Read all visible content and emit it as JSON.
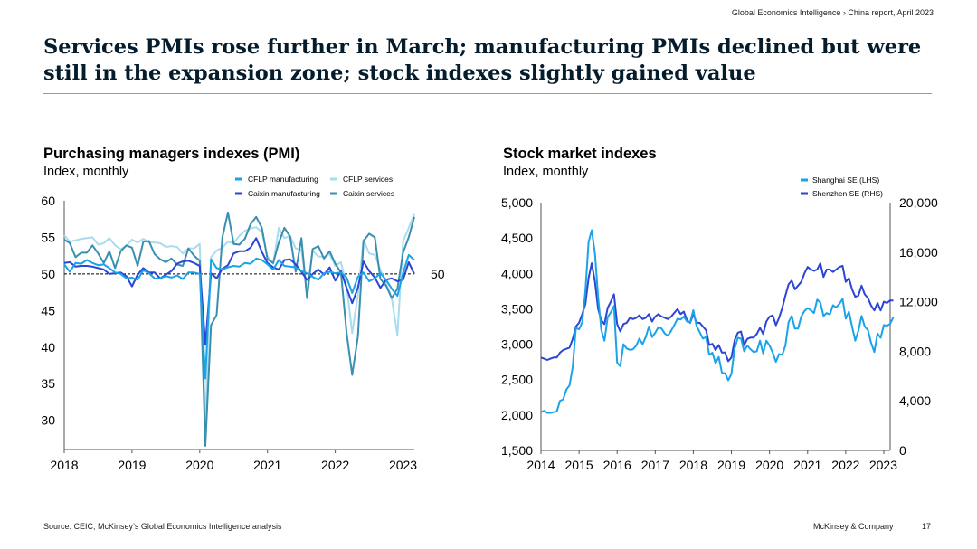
{
  "header": {
    "breadcrumb": "Global Economics Intelligence › China report, April 2023",
    "title": "Services PMIs rose further in March; manufacturing PMIs declined but were still in the expansion zone; stock indexes slightly gained value"
  },
  "colors": {
    "cflp_manufacturing": "#1aa3e8",
    "cflp_services": "#a8dcee",
    "caixin_manufacturing": "#2b45d4",
    "caixin_services": "#3a8fb0",
    "shanghai": "#1aa3e8",
    "shenzhen": "#2b45d4",
    "title": "#051c2c"
  },
  "footer": {
    "source": "Source: CEIC; McKinsey’s Global Economics Intelligence analysis",
    "company": "McKinsey & Company",
    "page": "17"
  },
  "chart_data": [
    {
      "type": "line",
      "title": "Purchasing managers indexes (PMI)",
      "subtitle": "Index, monthly",
      "xlabel": "",
      "ylabel": "",
      "x_start": "2018-01",
      "x_ticks": [
        "2018",
        "2019",
        "2020",
        "2021",
        "2022",
        "2023"
      ],
      "xlim": [
        "2018-01",
        "2023-03"
      ],
      "y_ticks": [
        60,
        55,
        50,
        45,
        40,
        35,
        30
      ],
      "ylim": [
        26,
        60
      ],
      "reference_line": {
        "y": 50,
        "label": "50",
        "style": "dashed"
      },
      "legend_position": "top",
      "grid": false,
      "series": [
        {
          "name": "CFLP manufacturing",
          "color": "#1aa3e8",
          "values": [
            51.3,
            50.3,
            51.5,
            51.4,
            51.9,
            51.5,
            51.2,
            51.3,
            50.8,
            50.2,
            50.0,
            49.4,
            49.5,
            49.2,
            50.5,
            50.1,
            49.4,
            49.4,
            49.7,
            49.5,
            49.8,
            49.3,
            50.2,
            50.2,
            50.0,
            35.7,
            52.0,
            50.8,
            50.6,
            50.9,
            51.1,
            51.0,
            51.5,
            51.4,
            52.1,
            51.9,
            51.3,
            50.6,
            51.9,
            51.1,
            51.0,
            50.9,
            50.4,
            50.1,
            49.6,
            49.2,
            50.1,
            50.3,
            50.1,
            50.2,
            49.5,
            47.4,
            49.6,
            50.2,
            49.0,
            49.4,
            50.1,
            49.2,
            48.0,
            47.0,
            50.1,
            52.6,
            51.9
          ]
        },
        {
          "name": "CFLP services",
          "color": "#a8dcee",
          "values": [
            55.3,
            54.4,
            54.6,
            54.8,
            54.9,
            55.0,
            54.0,
            54.2,
            54.9,
            53.9,
            53.4,
            53.8,
            54.7,
            54.3,
            54.8,
            54.3,
            54.3,
            54.2,
            53.7,
            53.8,
            53.7,
            52.8,
            53.5,
            53.5,
            54.1,
            29.6,
            52.3,
            53.2,
            53.6,
            54.4,
            54.2,
            55.2,
            55.9,
            56.2,
            56.4,
            55.7,
            52.4,
            51.4,
            56.3,
            54.9,
            55.2,
            53.5,
            53.3,
            47.5,
            53.2,
            52.4,
            52.3,
            52.7,
            51.1,
            51.6,
            48.4,
            41.9,
            47.1,
            54.7,
            52.8,
            52.6,
            50.6,
            48.7,
            46.7,
            41.6,
            54.4,
            56.3,
            58.2
          ]
        },
        {
          "name": "Caixin manufacturing",
          "color": "#2b45d4",
          "values": [
            51.5,
            51.6,
            51.0,
            51.1,
            51.1,
            51.0,
            50.8,
            50.6,
            50.0,
            50.1,
            50.2,
            49.7,
            48.3,
            49.9,
            50.8,
            50.2,
            50.2,
            49.4,
            49.9,
            50.4,
            51.4,
            51.7,
            51.8,
            51.5,
            51.1,
            40.3,
            50.1,
            49.4,
            50.7,
            51.2,
            52.8,
            53.1,
            53.1,
            53.6,
            54.9,
            53.0,
            51.5,
            50.9,
            50.6,
            51.9,
            52.0,
            51.3,
            50.3,
            49.2,
            50.0,
            50.6,
            49.9,
            50.9,
            49.1,
            50.4,
            48.1,
            46.0,
            48.1,
            51.7,
            50.4,
            49.5,
            48.1,
            49.2,
            49.4,
            49.0,
            49.2,
            51.6,
            50.0
          ]
        },
        {
          "name": "Caixin services",
          "color": "#3a8fb0",
          "values": [
            54.7,
            54.2,
            52.3,
            52.9,
            52.9,
            53.9,
            52.8,
            51.5,
            53.1,
            50.8,
            53.1,
            53.9,
            53.6,
            51.1,
            54.4,
            54.5,
            52.7,
            52.0,
            51.6,
            52.1,
            51.3,
            51.1,
            53.5,
            52.5,
            51.8,
            26.5,
            43.0,
            44.4,
            55.0,
            58.4,
            54.1,
            54.0,
            54.8,
            56.8,
            57.8,
            56.3,
            52.0,
            51.5,
            54.3,
            56.3,
            55.1,
            50.3,
            54.9,
            46.7,
            53.4,
            53.8,
            52.1,
            53.1,
            51.4,
            50.2,
            42.0,
            36.2,
            41.4,
            54.5,
            55.5,
            55.0,
            49.3,
            48.4,
            46.7,
            48.0,
            52.9,
            55.0,
            57.8
          ]
        }
      ]
    },
    {
      "type": "line",
      "title": "Stock market indexes",
      "subtitle": "Index, monthly",
      "xlabel": "",
      "ylabel": "",
      "x_start": "2014-01",
      "x_ticks": [
        "2014",
        "2015",
        "2016",
        "2017",
        "2018",
        "2019",
        "2020",
        "2021",
        "2022",
        "2023"
      ],
      "xlim": [
        "2014-01",
        "2023-03"
      ],
      "y_left": {
        "ticks": [
          5000,
          4500,
          4000,
          3500,
          3000,
          2500,
          2000,
          1500
        ],
        "range": [
          1500,
          5000
        ],
        "format": "thousands"
      },
      "y_right": {
        "ticks": [
          20000,
          16000,
          12000,
          8000,
          4000,
          0
        ],
        "range": [
          0,
          20000
        ],
        "format": "thousands"
      },
      "legend_position": "top-right",
      "grid": false,
      "series": [
        {
          "name": "Shanghai SE (LHS)",
          "axis": "left",
          "color": "#1aa3e8",
          "values": [
            2040,
            2060,
            2030,
            2030,
            2040,
            2050,
            2200,
            2220,
            2360,
            2420,
            2680,
            3230,
            3210,
            3310,
            3750,
            4440,
            4610,
            4280,
            3660,
            3200,
            3050,
            3380,
            3450,
            3540,
            2740,
            2690,
            3000,
            2940,
            2920,
            2930,
            2980,
            3080,
            3000,
            3100,
            3250,
            3100,
            3160,
            3240,
            3220,
            3150,
            3120,
            3190,
            3270,
            3360,
            3350,
            3390,
            3320,
            3310,
            3480,
            3260,
            3170,
            3080,
            3100,
            2850,
            2880,
            2730,
            2820,
            2600,
            2590,
            2490,
            2580,
            2940,
            3090,
            3080,
            2900,
            2980,
            2930,
            2890,
            2900,
            3050,
            2870,
            3050,
            2980,
            2880,
            2750,
            2860,
            2850,
            2980,
            3310,
            3400,
            3220,
            3220,
            3390,
            3470,
            3510,
            3480,
            3440,
            3630,
            3590,
            3400,
            3440,
            3420,
            3550,
            3520,
            3570,
            3640,
            3360,
            3460,
            3250,
            3050,
            3190,
            3400,
            3250,
            3200,
            3020,
            2890,
            3150,
            3090,
            3270,
            3260,
            3290,
            3380
          ]
        },
        {
          "name": "Shenzhen SE (RHS)",
          "axis": "right",
          "color": "#2b45d4",
          "values": [
            7500,
            7400,
            7300,
            7400,
            7500,
            7500,
            7900,
            8100,
            8200,
            8300,
            9000,
            10000,
            10300,
            11000,
            11800,
            13900,
            15100,
            13600,
            11400,
            10500,
            10200,
            11500,
            12000,
            12600,
            10200,
            9600,
            10200,
            10300,
            10700,
            10600,
            10700,
            10900,
            10600,
            10700,
            11000,
            10400,
            10800,
            11000,
            10800,
            10700,
            10600,
            10800,
            11100,
            11400,
            11000,
            11200,
            10500,
            10300,
            11000,
            10300,
            10300,
            10000,
            9700,
            8500,
            8600,
            8100,
            8500,
            7900,
            7900,
            7200,
            7500,
            8900,
            9500,
            9600,
            8500,
            9000,
            9100,
            9100,
            9400,
            9900,
            9400,
            10400,
            10800,
            10900,
            10100,
            10700,
            11500,
            12500,
            13400,
            13700,
            13000,
            13300,
            13600,
            14300,
            14800,
            14600,
            14500,
            14600,
            15100,
            14000,
            14600,
            14600,
            14400,
            14600,
            14800,
            14900,
            13600,
            13900,
            13000,
            12400,
            12500,
            13300,
            12600,
            12300,
            11700,
            11300,
            11900,
            11300,
            12000,
            11900,
            12100,
            12100
          ]
        }
      ]
    }
  ]
}
